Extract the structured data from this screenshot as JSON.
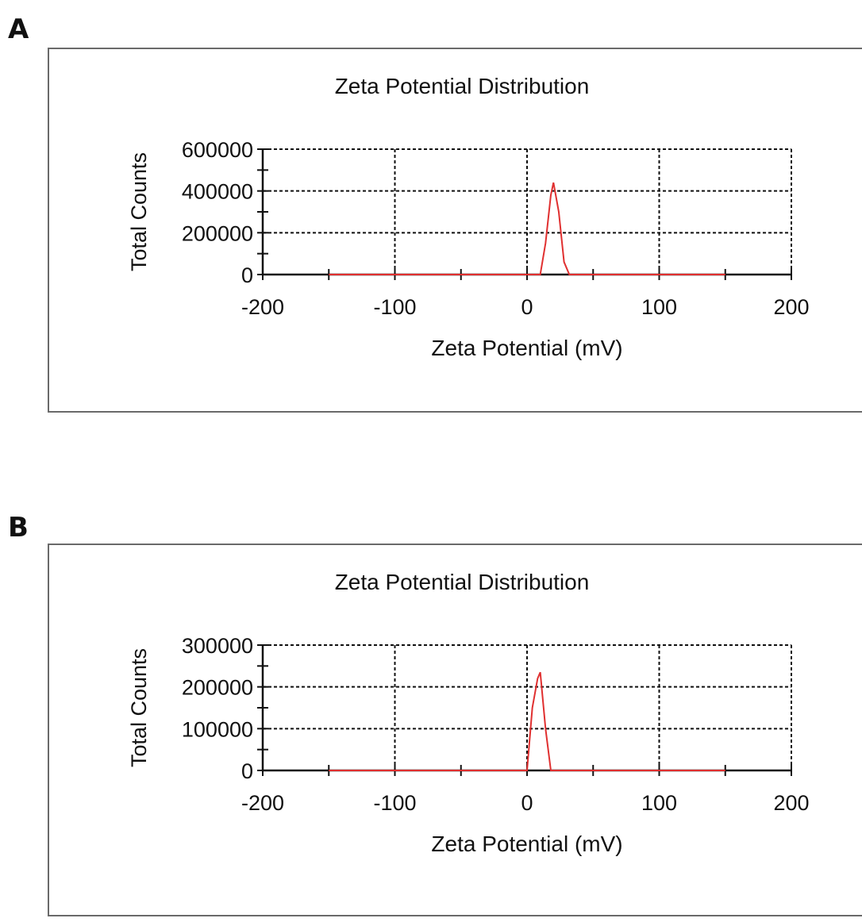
{
  "panels": [
    {
      "label": "A"
    },
    {
      "label": "B"
    }
  ],
  "colors": {
    "series": "#e03030",
    "grid": "#111111",
    "frame": "#6a6a6a"
  },
  "chart_data": [
    {
      "type": "line",
      "title": "Zeta Potential Distribution",
      "xlabel": "Zeta Potential (mV)",
      "ylabel": "Total Counts",
      "xlim": [
        -200,
        200
      ],
      "ylim": [
        0,
        600000
      ],
      "xticks": [
        "-200",
        "-100",
        "0",
        "100",
        "200"
      ],
      "yticks": [
        "600000",
        "400000",
        "200000",
        "0"
      ],
      "grid": true,
      "series": [
        {
          "x": [
            -150,
            10,
            14,
            18,
            20,
            24,
            28,
            32,
            150
          ],
          "values": [
            0,
            0,
            150000,
            380000,
            440000,
            300000,
            60000,
            0,
            0
          ]
        }
      ]
    },
    {
      "type": "line",
      "title": "Zeta Potential Distribution",
      "xlabel": "Zeta Potential (mV)",
      "ylabel": "Total Counts",
      "xlim": [
        -200,
        200
      ],
      "ylim": [
        0,
        300000
      ],
      "xticks": [
        "-200",
        "-100",
        "0",
        "100",
        "200"
      ],
      "yticks": [
        "300000",
        "200000",
        "100000",
        "0"
      ],
      "grid": true,
      "series": [
        {
          "x": [
            -150,
            0,
            4,
            8,
            10,
            14,
            18,
            150
          ],
          "values": [
            0,
            0,
            150000,
            220000,
            235000,
            100000,
            0,
            0
          ]
        }
      ]
    }
  ]
}
